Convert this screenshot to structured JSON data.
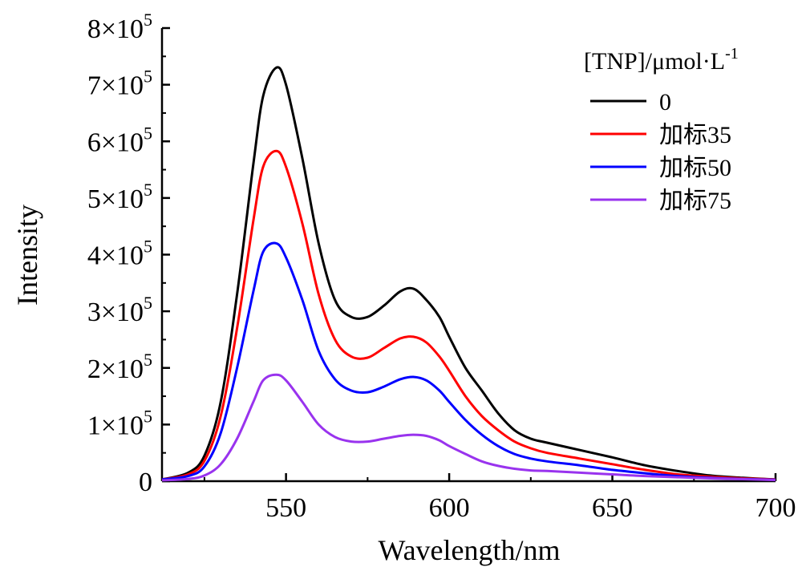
{
  "chart_data": {
    "type": "line",
    "xlabel": "Wavelength/nm",
    "ylabel": "Intensity",
    "xlim": [
      512,
      700
    ],
    "ylim": [
      0,
      800000
    ],
    "x_ticks": [
      550,
      600,
      650,
      700
    ],
    "x_tick_labels": [
      "550",
      "600",
      "650",
      "700"
    ],
    "y_ticks": [
      0,
      100000,
      200000,
      300000,
      400000,
      500000,
      600000,
      700000,
      800000
    ],
    "y_tick_labels": [
      {
        "mant": "0",
        "exp": ""
      },
      {
        "mant": "1×10",
        "exp": "5"
      },
      {
        "mant": "2×10",
        "exp": "5"
      },
      {
        "mant": "3×10",
        "exp": "5"
      },
      {
        "mant": "4×10",
        "exp": "5"
      },
      {
        "mant": "5×10",
        "exp": "5"
      },
      {
        "mant": "6×10",
        "exp": "5"
      },
      {
        "mant": "7×10",
        "exp": "5"
      },
      {
        "mant": "8×10",
        "exp": "5"
      }
    ],
    "legend": {
      "title": "[TNP]/μmol·L",
      "title_sup": "-1",
      "position": "top-right"
    },
    "x": [
      512,
      520,
      525,
      530,
      535,
      540,
      543,
      547,
      550,
      555,
      560,
      565,
      570,
      575,
      580,
      585,
      589,
      593,
      597,
      600,
      605,
      610,
      615,
      620,
      625,
      630,
      640,
      650,
      660,
      670,
      680,
      690,
      700
    ],
    "series": [
      {
        "name": "0",
        "color": "#000000",
        "values": [
          3000,
          15000,
          45000,
          140000,
          330000,
          560000,
          680000,
          730000,
          700000,
          570000,
          420000,
          320000,
          290000,
          290000,
          310000,
          335000,
          340000,
          320000,
          290000,
          255000,
          200000,
          160000,
          120000,
          90000,
          75000,
          68000,
          55000,
          42000,
          28000,
          18000,
          10000,
          6000,
          3000
        ]
      },
      {
        "name": "加标35",
        "color": "#ff0000",
        "values": [
          3000,
          12000,
          36000,
          115000,
          270000,
          460000,
          555000,
          583000,
          555000,
          455000,
          330000,
          250000,
          220000,
          218000,
          235000,
          252000,
          255000,
          245000,
          220000,
          195000,
          150000,
          115000,
          90000,
          70000,
          58000,
          50000,
          40000,
          30000,
          20000,
          12000,
          8000,
          5000,
          3000
        ]
      },
      {
        "name": "加标50",
        "color": "#0000ff",
        "values": [
          3000,
          9000,
          26000,
          85000,
          200000,
          335000,
          405000,
          420000,
          395000,
          320000,
          230000,
          180000,
          160000,
          157000,
          167000,
          180000,
          184000,
          178000,
          160000,
          140000,
          108000,
          82000,
          62000,
          48000,
          40000,
          35000,
          28000,
          20000,
          14000,
          9000,
          6000,
          4000,
          2500
        ]
      },
      {
        "name": "加标75",
        "color": "#9933ee",
        "values": [
          1500,
          4000,
          10000,
          30000,
          75000,
          140000,
          178000,
          188000,
          178000,
          140000,
          100000,
          78000,
          70000,
          70000,
          75000,
          80000,
          82000,
          80000,
          72000,
          62000,
          48000,
          35000,
          27000,
          22000,
          19000,
          18000,
          15000,
          12000,
          9000,
          7000,
          5000,
          3500,
          2000
        ]
      }
    ]
  }
}
